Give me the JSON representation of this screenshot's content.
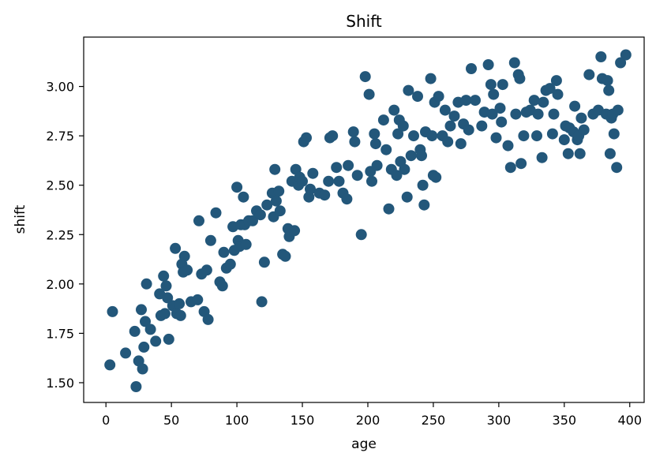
{
  "chart_data": {
    "type": "scatter",
    "title": "Shift",
    "xlabel": "age",
    "ylabel": "shift",
    "xlim": [
      -17,
      411
    ],
    "ylim": [
      1.4,
      3.25
    ],
    "xticks": [
      0,
      50,
      100,
      150,
      200,
      250,
      300,
      350,
      400
    ],
    "yticks": [
      1.5,
      1.75,
      2.0,
      2.25,
      2.5,
      2.75,
      3.0
    ],
    "ytick_format": "0.00",
    "grid": false,
    "legend": "none",
    "marker_color": "#23577a",
    "points": [
      [
        3,
        1.59
      ],
      [
        5,
        1.86
      ],
      [
        15,
        1.65
      ],
      [
        22,
        1.76
      ],
      [
        23,
        1.48
      ],
      [
        25,
        1.61
      ],
      [
        27,
        1.87
      ],
      [
        28,
        1.57
      ],
      [
        29,
        1.68
      ],
      [
        30,
        1.81
      ],
      [
        31,
        2.0
      ],
      [
        34,
        1.77
      ],
      [
        38,
        1.71
      ],
      [
        41,
        1.95
      ],
      [
        42,
        1.84
      ],
      [
        44,
        2.04
      ],
      [
        45,
        1.85
      ],
      [
        46,
        1.99
      ],
      [
        47,
        1.93
      ],
      [
        48,
        1.72
      ],
      [
        51,
        1.89
      ],
      [
        53,
        2.18
      ],
      [
        54,
        1.85
      ],
      [
        56,
        1.9
      ],
      [
        57,
        1.84
      ],
      [
        58,
        2.1
      ],
      [
        59,
        2.06
      ],
      [
        60,
        2.14
      ],
      [
        62,
        2.07
      ],
      [
        65,
        1.91
      ],
      [
        70,
        1.92
      ],
      [
        71,
        2.32
      ],
      [
        73,
        2.05
      ],
      [
        75,
        1.86
      ],
      [
        77,
        2.07
      ],
      [
        78,
        1.82
      ],
      [
        80,
        2.22
      ],
      [
        84,
        2.36
      ],
      [
        87,
        2.01
      ],
      [
        89,
        1.99
      ],
      [
        90,
        2.16
      ],
      [
        92,
        2.08
      ],
      [
        95,
        2.1
      ],
      [
        97,
        2.29
      ],
      [
        98,
        2.17
      ],
      [
        100,
        2.49
      ],
      [
        101,
        2.22
      ],
      [
        102,
        2.19
      ],
      [
        103,
        2.3
      ],
      [
        105,
        2.44
      ],
      [
        106,
        2.3
      ],
      [
        107,
        2.2
      ],
      [
        109,
        2.32
      ],
      [
        112,
        2.32
      ],
      [
        115,
        2.37
      ],
      [
        118,
        2.35
      ],
      [
        119,
        1.91
      ],
      [
        121,
        2.11
      ],
      [
        123,
        2.4
      ],
      [
        127,
        2.46
      ],
      [
        128,
        2.34
      ],
      [
        129,
        2.58
      ],
      [
        130,
        2.42
      ],
      [
        132,
        2.47
      ],
      [
        133,
        2.37
      ],
      [
        135,
        2.15
      ],
      [
        137,
        2.14
      ],
      [
        139,
        2.28
      ],
      [
        140,
        2.24
      ],
      [
        142,
        2.52
      ],
      [
        144,
        2.27
      ],
      [
        145,
        2.58
      ],
      [
        147,
        2.5
      ],
      [
        148,
        2.54
      ],
      [
        150,
        2.52
      ],
      [
        151,
        2.72
      ],
      [
        153,
        2.74
      ],
      [
        155,
        2.44
      ],
      [
        156,
        2.48
      ],
      [
        158,
        2.56
      ],
      [
        163,
        2.46
      ],
      [
        167,
        2.45
      ],
      [
        170,
        2.52
      ],
      [
        171,
        2.74
      ],
      [
        173,
        2.75
      ],
      [
        176,
        2.59
      ],
      [
        178,
        2.52
      ],
      [
        181,
        2.46
      ],
      [
        184,
        2.43
      ],
      [
        185,
        2.6
      ],
      [
        189,
        2.77
      ],
      [
        190,
        2.72
      ],
      [
        192,
        2.55
      ],
      [
        195,
        2.25
      ],
      [
        198,
        3.05
      ],
      [
        201,
        2.96
      ],
      [
        202,
        2.57
      ],
      [
        203,
        2.52
      ],
      [
        205,
        2.76
      ],
      [
        206,
        2.71
      ],
      [
        207,
        2.6
      ],
      [
        212,
        2.83
      ],
      [
        214,
        2.68
      ],
      [
        216,
        2.38
      ],
      [
        218,
        2.58
      ],
      [
        220,
        2.88
      ],
      [
        222,
        2.55
      ],
      [
        223,
        2.76
      ],
      [
        224,
        2.83
      ],
      [
        225,
        2.62
      ],
      [
        227,
        2.8
      ],
      [
        228,
        2.58
      ],
      [
        230,
        2.44
      ],
      [
        231,
        2.98
      ],
      [
        233,
        2.65
      ],
      [
        235,
        2.75
      ],
      [
        238,
        2.95
      ],
      [
        240,
        2.68
      ],
      [
        241,
        2.65
      ],
      [
        242,
        2.5
      ],
      [
        243,
        2.4
      ],
      [
        244,
        2.77
      ],
      [
        248,
        3.04
      ],
      [
        249,
        2.75
      ],
      [
        250,
        2.55
      ],
      [
        251,
        2.92
      ],
      [
        252,
        2.54
      ],
      [
        254,
        2.95
      ],
      [
        257,
        2.75
      ],
      [
        259,
        2.88
      ],
      [
        261,
        2.72
      ],
      [
        263,
        2.8
      ],
      [
        266,
        2.85
      ],
      [
        269,
        2.92
      ],
      [
        271,
        2.71
      ],
      [
        273,
        2.81
      ],
      [
        275,
        2.93
      ],
      [
        277,
        2.78
      ],
      [
        279,
        3.09
      ],
      [
        282,
        2.93
      ],
      [
        287,
        2.8
      ],
      [
        289,
        2.87
      ],
      [
        292,
        3.11
      ],
      [
        294,
        3.01
      ],
      [
        295,
        2.86
      ],
      [
        296,
        2.96
      ],
      [
        298,
        2.74
      ],
      [
        301,
        2.89
      ],
      [
        302,
        2.82
      ],
      [
        303,
        3.01
      ],
      [
        307,
        2.7
      ],
      [
        309,
        2.59
      ],
      [
        312,
        3.12
      ],
      [
        313,
        2.86
      ],
      [
        315,
        3.06
      ],
      [
        316,
        3.04
      ],
      [
        317,
        2.61
      ],
      [
        319,
        2.75
      ],
      [
        321,
        2.87
      ],
      [
        324,
        2.88
      ],
      [
        327,
        2.93
      ],
      [
        329,
        2.75
      ],
      [
        330,
        2.86
      ],
      [
        333,
        2.64
      ],
      [
        334,
        2.92
      ],
      [
        336,
        2.98
      ],
      [
        339,
        2.99
      ],
      [
        341,
        2.76
      ],
      [
        342,
        2.86
      ],
      [
        344,
        3.03
      ],
      [
        345,
        2.96
      ],
      [
        350,
        2.73
      ],
      [
        351,
        2.8
      ],
      [
        353,
        2.66
      ],
      [
        354,
        2.79
      ],
      [
        357,
        2.77
      ],
      [
        358,
        2.9
      ],
      [
        360,
        2.73
      ],
      [
        361,
        2.75
      ],
      [
        362,
        2.66
      ],
      [
        363,
        2.84
      ],
      [
        365,
        2.78
      ],
      [
        369,
        3.06
      ],
      [
        372,
        2.86
      ],
      [
        376,
        2.88
      ],
      [
        378,
        3.15
      ],
      [
        379,
        3.04
      ],
      [
        382,
        2.86
      ],
      [
        383,
        3.03
      ],
      [
        384,
        2.98
      ],
      [
        385,
        2.66
      ],
      [
        386,
        2.84
      ],
      [
        387,
        2.86
      ],
      [
        388,
        2.76
      ],
      [
        390,
        2.59
      ],
      [
        391,
        2.88
      ],
      [
        393,
        3.12
      ],
      [
        397,
        3.16
      ]
    ]
  }
}
